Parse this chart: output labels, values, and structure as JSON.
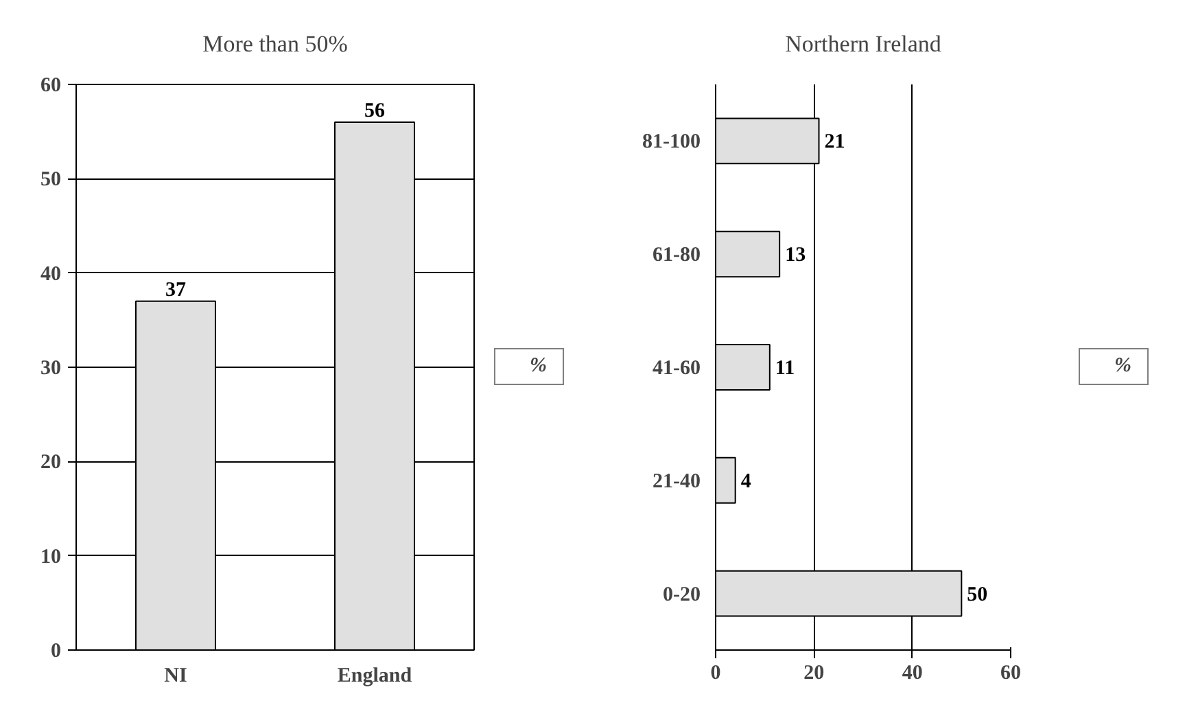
{
  "chart_data": [
    {
      "type": "bar",
      "title": "More than 50%",
      "categories": [
        "NI",
        "England"
      ],
      "series": [
        {
          "name": "%",
          "color": "#e0e0e0",
          "values": [
            37,
            56
          ]
        }
      ],
      "ylim": [
        0,
        60
      ],
      "yticks": [
        0,
        10,
        20,
        30,
        40,
        50,
        60
      ],
      "grid": "y",
      "legend": "right",
      "data_labels": true
    },
    {
      "type": "bar",
      "orientation": "horizontal",
      "title": "Northern Ireland",
      "categories": [
        "81-100",
        "61-80",
        "41-60",
        "21-40",
        "0-20"
      ],
      "series": [
        {
          "name": "%",
          "color": "#e0e0e0",
          "values": [
            21,
            13,
            11,
            4,
            50
          ]
        }
      ],
      "xlim": [
        0,
        60
      ],
      "xticks": [
        0,
        20,
        40,
        60
      ],
      "grid": "x",
      "legend": "right",
      "data_labels": true
    }
  ]
}
